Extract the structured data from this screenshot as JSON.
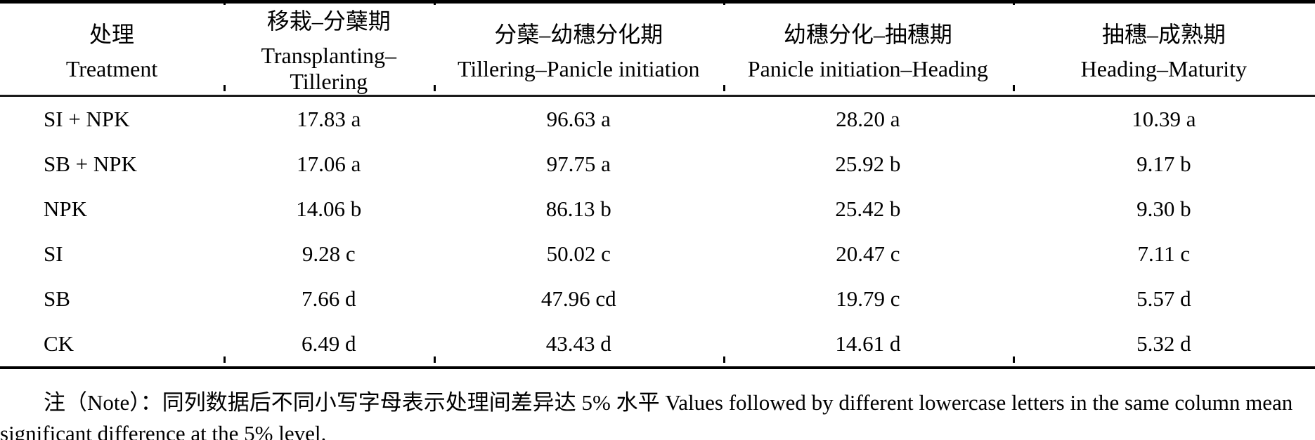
{
  "table": {
    "columns": [
      {
        "zh": "处理",
        "en": "Treatment"
      },
      {
        "zh": "移栽–分蘖期",
        "en": "Transplanting–Tillering"
      },
      {
        "zh": "分蘖–幼穗分化期",
        "en": "Tillering–Panicle initiation"
      },
      {
        "zh": "幼穗分化–抽穗期",
        "en": "Panicle initiation–Heading"
      },
      {
        "zh": "抽穗–成熟期",
        "en": "Heading–Maturity"
      }
    ],
    "rows": [
      {
        "treatment": "SI + NPK",
        "values": [
          "17.83 a",
          "96.63 a",
          "28.20 a",
          "10.39 a"
        ]
      },
      {
        "treatment": "SB + NPK",
        "values": [
          "17.06 a",
          "97.75 a",
          "25.92 b",
          "9.17 b"
        ]
      },
      {
        "treatment": "NPK",
        "values": [
          "14.06 b",
          "86.13 b",
          "25.42 b",
          "9.30 b"
        ]
      },
      {
        "treatment": "SI",
        "values": [
          "9.28 c",
          "50.02 c",
          "20.47 c",
          "7.11 c"
        ]
      },
      {
        "treatment": "SB",
        "values": [
          "7.66 d",
          "47.96 cd",
          "19.79 c",
          "5.57 d"
        ]
      },
      {
        "treatment": "CK",
        "values": [
          "6.49 d",
          "43.43 d",
          "14.61 d",
          "5.32 d"
        ]
      }
    ]
  },
  "note": "注（Note）：同列数据后不同小写字母表示处理间差异达 5% 水平 Values followed by different lowercase letters in the same column mean significant difference at the 5% level.",
  "colors": {
    "text": "#000000",
    "background": "#ffffff",
    "rule": "#000000"
  },
  "chart_data": {
    "type": "table",
    "columns": [
      "处理 Treatment",
      "移栽–分蘖期 Transplanting–Tillering",
      "分蘖–幼穗分化期 Tillering–Panicle initiation",
      "幼穗分化–抽穗期 Panicle initiation–Heading",
      "抽穗–成熟期 Heading–Maturity"
    ],
    "rows": [
      [
        "SI + NPK",
        "17.83 a",
        "96.63 a",
        "28.20 a",
        "10.39 a"
      ],
      [
        "SB + NPK",
        "17.06 a",
        "97.75 a",
        "25.92 b",
        "9.17 b"
      ],
      [
        "NPK",
        "14.06 b",
        "86.13 b",
        "25.42 b",
        "9.30 b"
      ],
      [
        "SI",
        "9.28 c",
        "50.02 c",
        "20.47 c",
        "7.11 c"
      ],
      [
        "SB",
        "7.66 d",
        "47.96 cd",
        "19.79 c",
        "5.57 d"
      ],
      [
        "CK",
        "6.49 d",
        "43.43 d",
        "14.61 d",
        "5.32 d"
      ]
    ]
  }
}
